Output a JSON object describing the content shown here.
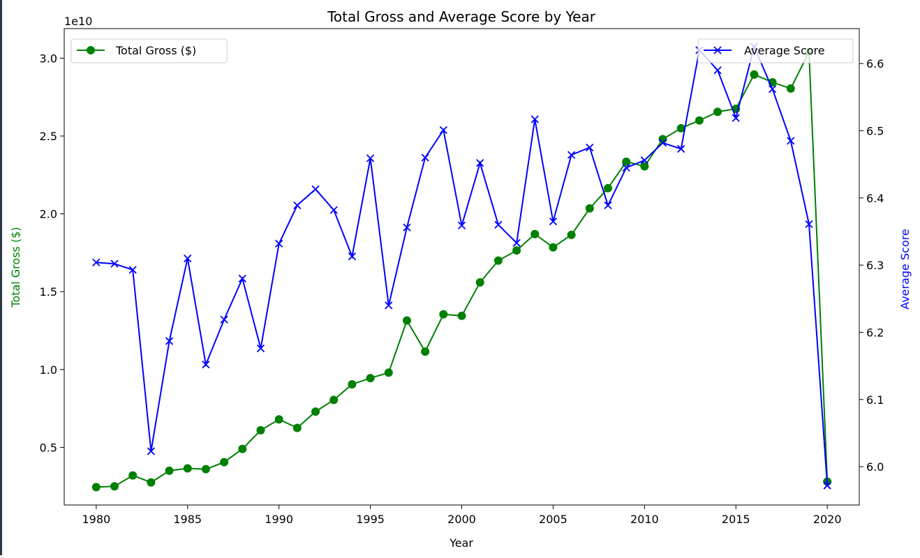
{
  "chart_data": {
    "type": "line",
    "title": "Total Gross and Average Score by Year",
    "xlabel": "Year",
    "ylabel_left": "Total Gross ($)",
    "ylabel_right": "Average Score",
    "left_axis_offset_label": "1e10",
    "xlim": [
      1978.25,
      2021.75
    ],
    "ylim_left": [
      1300000000.0,
      31900000000.0
    ],
    "ylim_right": [
      5.943,
      6.652
    ],
    "x_ticks": [
      1980,
      1985,
      1990,
      1995,
      2000,
      2005,
      2010,
      2015,
      2020
    ],
    "x_tick_labels": [
      "1980",
      "1985",
      "1990",
      "1995",
      "2000",
      "2005",
      "2010",
      "2015",
      "2020"
    ],
    "y_left_ticks": [
      5000000000.0,
      10000000000.0,
      15000000000.0,
      20000000000.0,
      25000000000.0,
      30000000000.0
    ],
    "y_left_tick_labels": [
      "0.5",
      "1.0",
      "1.5",
      "2.0",
      "2.5",
      "3.0"
    ],
    "y_right_ticks": [
      6.0,
      6.1,
      6.2,
      6.3,
      6.4,
      6.5,
      6.6
    ],
    "y_right_tick_labels": [
      "6.0",
      "6.1",
      "6.2",
      "6.3",
      "6.4",
      "6.5",
      "6.6"
    ],
    "grid": false,
    "x": [
      1980,
      1981,
      1982,
      1983,
      1984,
      1985,
      1986,
      1987,
      1988,
      1989,
      1990,
      1991,
      1992,
      1993,
      1994,
      1995,
      1996,
      1997,
      1998,
      1999,
      2000,
      2001,
      2002,
      2003,
      2004,
      2005,
      2006,
      2007,
      2008,
      2009,
      2010,
      2011,
      2012,
      2013,
      2014,
      2015,
      2016,
      2017,
      2018,
      2019,
      2020
    ],
    "series": [
      {
        "name": "Total Gross ($)",
        "axis": "left",
        "color": "#008000",
        "marker": "circle",
        "values": [
          2450000000.0,
          2500000000.0,
          3200000000.0,
          2750000000.0,
          3500000000.0,
          3650000000.0,
          3600000000.0,
          4050000000.0,
          4900000000.0,
          6100000000.0,
          6800000000.0,
          6250000000.0,
          7300000000.0,
          8050000000.0,
          9050000000.0,
          9450000000.0,
          9800000000.0,
          13150000000.0,
          11150000000.0,
          13550000000.0,
          13450000000.0,
          15600000000.0,
          17000000000.0,
          17650000000.0,
          18700000000.0,
          17850000000.0,
          18650000000.0,
          20350000000.0,
          21650000000.0,
          23350000000.0,
          23050000000.0,
          24800000000.0,
          25500000000.0,
          26000000000.0,
          26550000000.0,
          26750000000.0,
          28950000000.0,
          28450000000.0,
          28050000000.0,
          30400000000.0,
          2800000000.0
        ]
      },
      {
        "name": "Average Score",
        "axis": "right",
        "color": "#0000ff",
        "marker": "x",
        "values": [
          6.304,
          6.302,
          6.293,
          6.023,
          6.187,
          6.31,
          6.152,
          6.219,
          6.28,
          6.176,
          6.332,
          6.389,
          6.413,
          6.382,
          6.313,
          6.459,
          6.24,
          6.356,
          6.46,
          6.501,
          6.359,
          6.452,
          6.36,
          6.333,
          6.517,
          6.365,
          6.464,
          6.475,
          6.389,
          6.445,
          6.456,
          6.482,
          6.473,
          6.62,
          6.59,
          6.519,
          6.625,
          6.562,
          6.485,
          6.361,
          5.972
        ]
      }
    ],
    "legend_left": {
      "placement": "upper-left",
      "label": "Total Gross ($)"
    },
    "legend_right": {
      "placement": "upper-right",
      "label": "Average Score"
    }
  }
}
